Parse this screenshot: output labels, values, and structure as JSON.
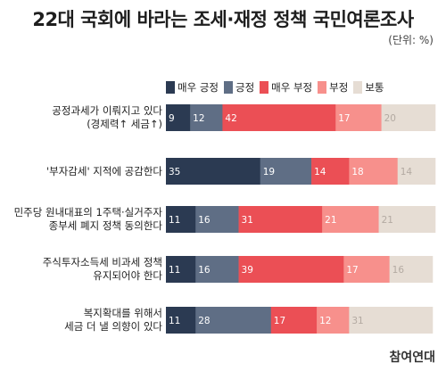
{
  "title": "22대 국회에 바라는 조세·재정 정책 국민여론조사",
  "unit_label": "(단위: %)",
  "logo_text": "참여연대",
  "chart_data": {
    "type": "bar",
    "orientation": "horizontal",
    "stacked": true,
    "xlim": [
      0,
      100
    ],
    "legend_position": "top",
    "categories": [
      [
        "공정과세가 이뤄지고 있다",
        "(경제력↑ 세금↑)"
      ],
      [
        "'부자감세' 지적에 공감한다"
      ],
      [
        "민주당 원내대표의 1주택·실거주자",
        "종부세 폐지 정책 동의한다"
      ],
      [
        "주식투자소득세 비과세 정책",
        "유지되어야 한다"
      ],
      [
        "복지확대를 위해서",
        "세금 더 낼 의향이 있다"
      ]
    ],
    "series": [
      {
        "name": "매우 긍정",
        "color": "#2b3a52",
        "label_color": "#ffffff",
        "values": [
          9,
          35,
          11,
          11,
          11
        ]
      },
      {
        "name": "긍정",
        "color": "#5f6e85",
        "label_color": "#ffffff",
        "values": [
          12,
          19,
          16,
          16,
          28
        ]
      },
      {
        "name": "매우 부정",
        "color": "#eb4f55",
        "label_color": "#ffffff",
        "values": [
          42,
          14,
          31,
          39,
          17
        ]
      },
      {
        "name": "부정",
        "color": "#f7908c",
        "label_color": "#ffffff",
        "values": [
          17,
          18,
          21,
          17,
          12
        ]
      },
      {
        "name": "보통",
        "color": "#e6ddd4",
        "label_color": "#b3aaa2",
        "values": [
          20,
          14,
          21,
          16,
          31
        ]
      }
    ]
  }
}
